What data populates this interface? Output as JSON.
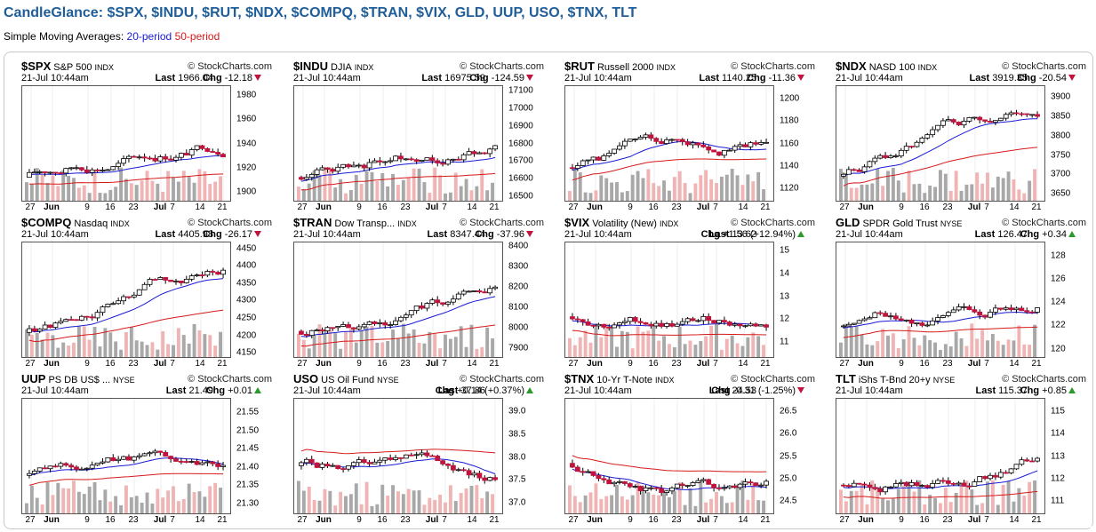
{
  "page": {
    "title": "CandleGlance: $SPX, $INDU, $RUT, $NDX, $COMPQ, $TRAN, $VIX, GLD, UUP, USO, $TNX, TLT",
    "subtitle_prefix": "Simple Moving Averages:",
    "sma20": "20-period",
    "sma50": "50-period"
  },
  "colors": {
    "up": "#ffffff",
    "down": "#c0143c",
    "sma20": "#1a1ad6",
    "sma50": "#d61a1a",
    "volume": "#a8a8a8",
    "volume_down": "#f0b4b4"
  },
  "x_labels": [
    "27",
    "Jun",
    "9",
    "16",
    "23",
    "Jul",
    "7",
    "14",
    "21"
  ],
  "charts": [
    {
      "symbol": "$SPX",
      "name": "S&P 500",
      "exchange": "INDX",
      "date": "21-Jul 10:44am",
      "last": "1966.04",
      "chg": "-12.18",
      "dir": "down",
      "watermark": "© StockCharts.com",
      "y_ticks": [
        "1980",
        "1960",
        "1940",
        "1920",
        "1900"
      ],
      "y_range": [
        1892,
        1988
      ]
    },
    {
      "symbol": "$INDU",
      "name": "DJIA",
      "exchange": "INDX",
      "date": "21-Jul 10:44am",
      "last": "16975.59",
      "chg": "-124.59",
      "dir": "down",
      "watermark": "© StockCharts.com",
      "y_ticks": [
        "17100",
        "17000",
        "16900",
        "16800",
        "16700",
        "16600",
        "16500"
      ],
      "y_range": [
        16470,
        17130
      ]
    },
    {
      "symbol": "$RUT",
      "name": "Russell 2000",
      "exchange": "INDX",
      "date": "21-Jul 10:44am",
      "last": "1140.25",
      "chg": "-11.36",
      "dir": "down",
      "watermark": "© StockCharts.com",
      "y_ticks": [
        "1200",
        "1180",
        "1160",
        "1140",
        "1120"
      ],
      "y_range": [
        1108,
        1212
      ]
    },
    {
      "symbol": "$NDX",
      "name": "NASD 100",
      "exchange": "INDX",
      "date": "21-Jul 10:44am",
      "last": "3919.35",
      "chg": "-20.54",
      "dir": "down",
      "watermark": "© StockCharts.com",
      "y_ticks": [
        "3900",
        "3850",
        "3800",
        "3750",
        "3700",
        "3650"
      ],
      "y_range": [
        3630,
        3930
      ]
    },
    {
      "symbol": "$COMPQ",
      "name": "Nasdaq",
      "exchange": "INDX",
      "date": "21-Jul 10:44am",
      "last": "4405.98",
      "chg": "-26.17",
      "dir": "down",
      "watermark": "© StockCharts.com",
      "y_ticks": [
        "4450",
        "4400",
        "4350",
        "4300",
        "4250",
        "4200",
        "4150"
      ],
      "y_range": [
        4135,
        4470
      ]
    },
    {
      "symbol": "$TRAN",
      "name": "Dow Transp...",
      "exchange": "INDX",
      "date": "21-Jul 10:44am",
      "last": "8347.44",
      "chg": "-37.96",
      "dir": "down",
      "watermark": "© StockCharts.com",
      "y_ticks": [
        "8400",
        "8300",
        "8200",
        "8100",
        "8000",
        "7900"
      ],
      "y_range": [
        7850,
        8420
      ]
    },
    {
      "symbol": "$VIX",
      "name": "Volatility (New)",
      "exchange": "INDX",
      "date": "21-Jul 10:44am",
      "last": "13.62",
      "chg": "+1.56 (+12.94%)",
      "dir": "up",
      "watermark": "© StockCharts.com",
      "y_ticks": [
        "15",
        "14",
        "13",
        "12",
        "11"
      ],
      "y_range": [
        10.3,
        15.4
      ]
    },
    {
      "symbol": "GLD",
      "name": "SPDR Gold Trust",
      "exchange": "NYSE",
      "date": "21-Jul 10:44am",
      "last": "126.47",
      "chg": "+0.34",
      "dir": "up",
      "watermark": "© StockCharts.com",
      "y_ticks": [
        "128",
        "126",
        "124",
        "122",
        "120"
      ],
      "y_range": [
        119.2,
        129.2
      ]
    },
    {
      "symbol": "UUP",
      "name": "PS DB US$ ...",
      "exchange": "NYSE",
      "date": "21-Jul 10:44am",
      "last": "21.49",
      "chg": "+0.01",
      "dir": "up",
      "watermark": "© StockCharts.com",
      "y_ticks": [
        "21.55",
        "21.50",
        "21.45",
        "21.40",
        "21.35",
        "21.30"
      ],
      "y_range": [
        21.27,
        21.59
      ]
    },
    {
      "symbol": "USO",
      "name": "US Oil Fund",
      "exchange": "NYSE",
      "date": "21-Jul 10:44am",
      "last": "37.86",
      "chg": "+0.14 (+0.37%)",
      "dir": "up",
      "watermark": "© StockCharts.com",
      "y_ticks": [
        "39.0",
        "38.5",
        "38.0",
        "37.5",
        "37.0"
      ],
      "y_range": [
        36.75,
        39.3
      ]
    },
    {
      "symbol": "$TNX",
      "name": "10-Yr T-Note",
      "exchange": "INDX",
      "date": "21-Jul 10:44am",
      "last": "24.53",
      "chg": "-0.31 (-1.25%)",
      "dir": "down",
      "watermark": "© StockCharts.com",
      "y_ticks": [
        "26.5",
        "26.0",
        "25.5",
        "25.0",
        "24.5"
      ],
      "y_range": [
        24.2,
        26.8
      ]
    },
    {
      "symbol": "TLT",
      "name": "iShs T-Bnd 20+y",
      "exchange": "NYSE",
      "date": "21-Jul 10:44am",
      "last": "115.37",
      "chg": "+0.85",
      "dir": "up",
      "watermark": "© StockCharts.com",
      "y_ticks": [
        "115",
        "114",
        "113",
        "112",
        "111"
      ],
      "y_range": [
        110.4,
        115.6
      ]
    }
  ]
}
